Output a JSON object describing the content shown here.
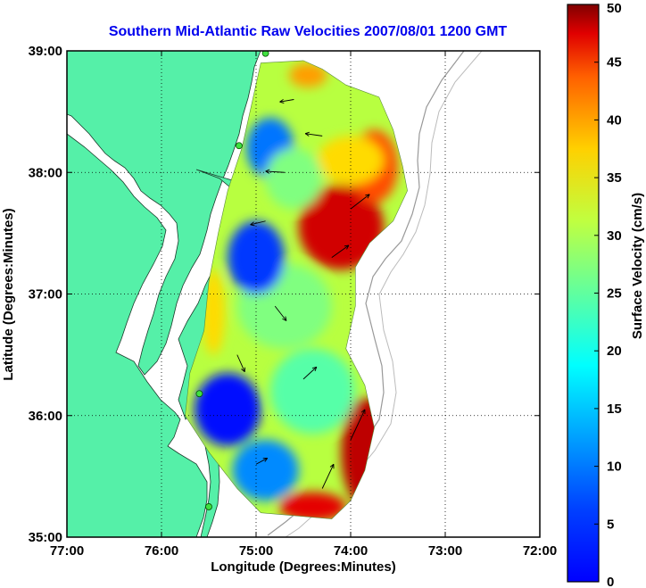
{
  "chart_data": {
    "type": "heatmap",
    "title": "Southern Mid-Atlantic Raw Velocities 2007/08/01 1200 GMT",
    "xlabel": "Longitude (Degrees:Minutes)",
    "ylabel": "Latitude (Degrees:Minutes)",
    "x_ticks": [
      {
        "value": -77,
        "label": "77:00"
      },
      {
        "value": -76,
        "label": "76:00"
      },
      {
        "value": -75,
        "label": "75:00"
      },
      {
        "value": -74,
        "label": "74:00"
      },
      {
        "value": -73,
        "label": "73:00"
      },
      {
        "value": -72,
        "label": "72:00"
      }
    ],
    "y_ticks": [
      {
        "value": 35,
        "label": "35:00"
      },
      {
        "value": 36,
        "label": "36:00"
      },
      {
        "value": 37,
        "label": "37:00"
      },
      {
        "value": 38,
        "label": "38:00"
      },
      {
        "value": 39,
        "label": "39:00"
      }
    ],
    "xlim": [
      -77,
      -72
    ],
    "ylim": [
      35,
      39
    ],
    "grid": "dotted",
    "colorbar": {
      "label": "Surface Velocity (cm/s)",
      "range": [
        0,
        50
      ],
      "colormap": "jet",
      "ticks": [
        {
          "value": 0,
          "label": "0"
        },
        {
          "value": 5,
          "label": "5"
        },
        {
          "value": 10,
          "label": "10"
        },
        {
          "value": 15,
          "label": "15"
        },
        {
          "value": 20,
          "label": "20"
        },
        {
          "value": 25,
          "label": "25"
        },
        {
          "value": 30,
          "label": "30"
        },
        {
          "value": 35,
          "label": "35"
        },
        {
          "value": 40,
          "label": "40"
        },
        {
          "value": 45,
          "label": "45"
        },
        {
          "value": 50,
          "label": "50"
        }
      ]
    },
    "field_outline": [
      [
        -74.95,
        38.9
      ],
      [
        -74.5,
        38.92
      ],
      [
        -74.3,
        38.85
      ],
      [
        -74.05,
        38.72
      ],
      [
        -73.7,
        38.62
      ],
      [
        -73.55,
        38.35
      ],
      [
        -73.45,
        38.05
      ],
      [
        -73.4,
        37.85
      ],
      [
        -73.55,
        37.6
      ],
      [
        -73.8,
        37.42
      ],
      [
        -73.95,
        37.22
      ],
      [
        -73.95,
        36.9
      ],
      [
        -74.05,
        36.55
      ],
      [
        -73.85,
        36.25
      ],
      [
        -73.75,
        35.9
      ],
      [
        -73.85,
        35.55
      ],
      [
        -74.0,
        35.3
      ],
      [
        -74.2,
        35.15
      ],
      [
        -74.95,
        35.2
      ],
      [
        -75.2,
        35.4
      ],
      [
        -75.5,
        35.7
      ],
      [
        -75.75,
        36.0
      ],
      [
        -75.7,
        36.35
      ],
      [
        -75.55,
        36.7
      ],
      [
        -75.5,
        37.1
      ],
      [
        -75.4,
        37.5
      ],
      [
        -75.3,
        37.85
      ],
      [
        -75.15,
        38.2
      ],
      [
        -75.05,
        38.55
      ],
      [
        -74.95,
        38.9
      ]
    ],
    "speed_patches": [
      {
        "lon": -74.1,
        "lat": 37.55,
        "rx": 0.45,
        "ry": 0.35,
        "speed": 46
      },
      {
        "lon": -73.75,
        "lat": 38.05,
        "rx": 0.25,
        "ry": 0.3,
        "speed": 40
      },
      {
        "lon": -74.0,
        "lat": 38.1,
        "rx": 0.35,
        "ry": 0.2,
        "speed": 33
      },
      {
        "lon": -73.85,
        "lat": 35.7,
        "rx": 0.25,
        "ry": 0.45,
        "speed": 47
      },
      {
        "lon": -74.4,
        "lat": 35.25,
        "rx": 0.35,
        "ry": 0.12,
        "speed": 45
      },
      {
        "lon": -74.45,
        "lat": 38.8,
        "rx": 0.2,
        "ry": 0.1,
        "speed": 36
      },
      {
        "lon": -75.45,
        "lat": 36.85,
        "rx": 0.12,
        "ry": 0.35,
        "speed": 33
      },
      {
        "lon": -74.7,
        "lat": 36.9,
        "rx": 0.5,
        "ry": 0.35,
        "speed": 25
      },
      {
        "lon": -74.4,
        "lat": 36.2,
        "rx": 0.45,
        "ry": 0.35,
        "speed": 23
      },
      {
        "lon": -74.85,
        "lat": 38.2,
        "rx": 0.25,
        "ry": 0.25,
        "speed": 12
      },
      {
        "lon": -75.0,
        "lat": 37.3,
        "rx": 0.3,
        "ry": 0.3,
        "speed": 9
      },
      {
        "lon": -75.3,
        "lat": 36.05,
        "rx": 0.35,
        "ry": 0.3,
        "speed": 7
      },
      {
        "lon": -74.9,
        "lat": 35.55,
        "rx": 0.35,
        "ry": 0.25,
        "speed": 13
      },
      {
        "lon": -74.6,
        "lat": 37.95,
        "rx": 0.3,
        "ry": 0.25,
        "speed": 25
      }
    ],
    "vectors": [
      {
        "lon": -74.6,
        "lat": 38.6,
        "u": -0.15,
        "v": -0.02
      },
      {
        "lon": -74.3,
        "lat": 38.3,
        "u": -0.18,
        "v": 0.02
      },
      {
        "lon": -74.7,
        "lat": 38.0,
        "u": -0.2,
        "v": 0.01
      },
      {
        "lon": -74.0,
        "lat": 37.7,
        "u": 0.2,
        "v": 0.12
      },
      {
        "lon": -74.2,
        "lat": 37.3,
        "u": 0.18,
        "v": 0.1
      },
      {
        "lon": -74.9,
        "lat": 37.6,
        "u": -0.16,
        "v": -0.03
      },
      {
        "lon": -74.8,
        "lat": 36.9,
        "u": 0.12,
        "v": -0.12
      },
      {
        "lon": -75.2,
        "lat": 36.5,
        "u": 0.08,
        "v": -0.14
      },
      {
        "lon": -74.5,
        "lat": 36.3,
        "u": 0.14,
        "v": 0.1
      },
      {
        "lon": -74.0,
        "lat": 35.8,
        "u": 0.15,
        "v": 0.25
      },
      {
        "lon": -74.3,
        "lat": 35.4,
        "u": 0.12,
        "v": 0.2
      },
      {
        "lon": -75.0,
        "lat": 35.6,
        "u": 0.12,
        "v": 0.05
      }
    ],
    "stations": [
      {
        "lon": -74.9,
        "lat": 38.98
      },
      {
        "lon": -75.18,
        "lat": 38.22
      },
      {
        "lon": -75.6,
        "lat": 36.18
      },
      {
        "lon": -75.5,
        "lat": 35.25
      }
    ]
  }
}
